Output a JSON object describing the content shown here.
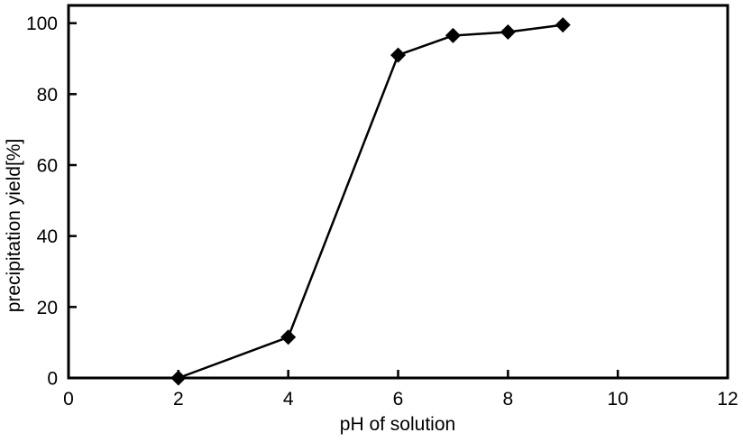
{
  "page": {
    "background": "#ffffff",
    "foreground": "#000000"
  },
  "chart_data": {
    "type": "line",
    "title": "",
    "xlabel": "pH of solution",
    "ylabel": "precipitation yield[%]",
    "series": [
      {
        "name": "precipitation yield",
        "x": [
          2,
          4,
          6,
          7,
          8,
          9
        ],
        "y": [
          0,
          11.5,
          91,
          96.5,
          97.5,
          99.5
        ]
      }
    ],
    "xlim": [
      0,
      12
    ],
    "ylim": [
      0,
      105
    ],
    "xticks": [
      0,
      2,
      4,
      6,
      8,
      10,
      12
    ],
    "yticks": [
      0,
      20,
      40,
      60,
      80,
      100
    ],
    "grid": false,
    "legend": "none",
    "marker": "diamond",
    "marker_size": 17,
    "line_color": "#000000",
    "marker_color": "#000000",
    "axis_color": "#000000",
    "frame": "full-box",
    "tick_direction": "in"
  }
}
